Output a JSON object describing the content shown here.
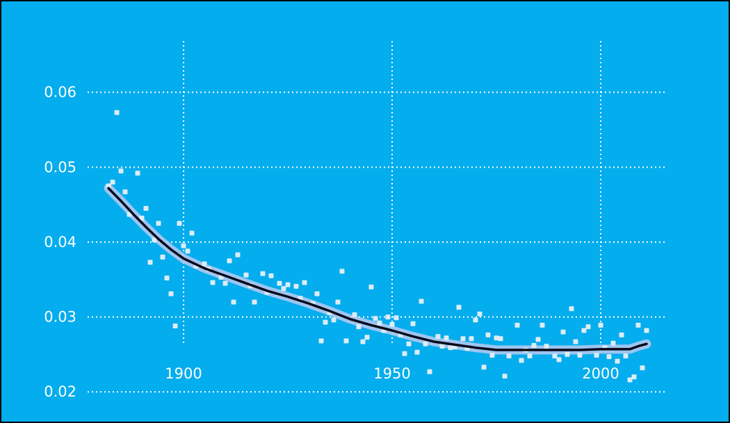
{
  "chart_data": {
    "type": "scatter",
    "title": "",
    "xlabel": "",
    "ylabel": "",
    "xlim": [
      1877,
      2016
    ],
    "ylim": [
      0.019,
      0.0635
    ],
    "x_ticks": [
      1900,
      1950,
      2000
    ],
    "x_tick_labels": [
      "1900",
      "1950",
      "2000"
    ],
    "y_ticks": [
      0.02,
      0.03,
      0.04,
      0.05,
      0.06
    ],
    "y_tick_labels": [
      "0.02",
      "0.03",
      "0.04",
      "0.05",
      "0.06"
    ],
    "grid": true,
    "colors": {
      "background": "#04aded",
      "points": "#dcecf5",
      "trend_line": "#0a0a1a",
      "confidence_band": "#b9c9f0",
      "grid": "#ffffff",
      "tick_labels": "#ffffff"
    },
    "series": [
      {
        "kind": "points",
        "x": [
          1882,
          1883,
          1884,
          1885,
          1886,
          1887,
          1889,
          1890,
          1891,
          1892,
          1893,
          1894,
          1895,
          1896,
          1897,
          1898,
          1899,
          1900,
          1901,
          1902,
          1903,
          1905,
          1906,
          1907,
          1909,
          1910,
          1911,
          1912,
          1913,
          1915,
          1916,
          1917,
          1919,
          1920,
          1921,
          1923,
          1924,
          1925,
          1927,
          1928,
          1929,
          1931,
          1932,
          1933,
          1934,
          1935,
          1936,
          1937,
          1938,
          1939,
          1941,
          1942,
          1943,
          1944,
          1945,
          1946,
          1947,
          1948,
          1949,
          1950,
          1951,
          1952,
          1953,
          1954,
          1955,
          1956,
          1957,
          1958,
          1959,
          1961,
          1962,
          1963,
          1964,
          1965,
          1966,
          1967,
          1968,
          1969,
          1970,
          1971,
          1972,
          1973,
          1974,
          1975,
          1976,
          1977,
          1978,
          1980,
          1981,
          1982,
          1983,
          1984,
          1985,
          1986,
          1987,
          1989,
          1990,
          1991,
          1992,
          1993,
          1994,
          1995,
          1996,
          1997,
          1999,
          2000,
          2001,
          2002,
          2003,
          2004,
          2005,
          2006,
          2007,
          2008,
          2009,
          2010,
          2011
        ],
        "y": [
          0.0475,
          0.048,
          0.0573,
          0.0495,
          0.0467,
          0.0437,
          0.0492,
          0.0432,
          0.0445,
          0.0373,
          0.0403,
          0.0425,
          0.038,
          0.0352,
          0.0331,
          0.0288,
          0.0425,
          0.0395,
          0.0388,
          0.0412,
          0.0368,
          0.0371,
          0.0364,
          0.0346,
          0.0353,
          0.0345,
          0.0375,
          0.032,
          0.0383,
          0.0356,
          0.0342,
          0.032,
          0.0358,
          0.0333,
          0.0355,
          0.0345,
          0.0338,
          0.0343,
          0.0341,
          0.0325,
          0.0346,
          0.0318,
          0.0331,
          0.0268,
          0.0293,
          0.0306,
          0.0296,
          0.032,
          0.0361,
          0.0268,
          0.0303,
          0.0287,
          0.0267,
          0.0273,
          0.034,
          0.0298,
          0.0292,
          0.0282,
          0.03,
          0.029,
          0.0299,
          0.0276,
          0.0251,
          0.0264,
          0.0291,
          0.0253,
          0.0321,
          0.0264,
          0.0227,
          0.0274,
          0.0261,
          0.0272,
          0.0259,
          0.026,
          0.0313,
          0.0271,
          0.0258,
          0.0271,
          0.0296,
          0.0304,
          0.0233,
          0.0276,
          0.0249,
          0.0272,
          0.0271,
          0.0221,
          0.0248,
          0.0289,
          0.0242,
          0.0256,
          0.0248,
          0.0262,
          0.027,
          0.0289,
          0.0261,
          0.0248,
          0.0243,
          0.028,
          0.025,
          0.0311,
          0.0267,
          0.0249,
          0.0282,
          0.0287,
          0.0249,
          0.0289,
          0.0259,
          0.0247,
          0.0265,
          0.0241,
          0.0276,
          0.0248,
          0.0216,
          0.022,
          0.0289,
          0.0232,
          0.0282
        ]
      },
      {
        "kind": "trend",
        "x": [
          1882,
          1885,
          1888,
          1891,
          1894,
          1897,
          1900,
          1905,
          1910,
          1915,
          1920,
          1925,
          1930,
          1935,
          1940,
          1945,
          1950,
          1955,
          1960,
          1965,
          1970,
          1975,
          1980,
          1985,
          1990,
          1995,
          2000,
          2005,
          2007,
          2009,
          2011
        ],
        "y": [
          0.0472,
          0.0455,
          0.0437,
          0.042,
          0.0404,
          0.039,
          0.0378,
          0.0365,
          0.0355,
          0.0345,
          0.0335,
          0.0327,
          0.0318,
          0.0308,
          0.0297,
          0.0289,
          0.0282,
          0.0274,
          0.0267,
          0.0263,
          0.0259,
          0.0256,
          0.0256,
          0.0256,
          0.0256,
          0.0256,
          0.0257,
          0.0257,
          0.0257,
          0.0261,
          0.0264
        ]
      }
    ]
  }
}
